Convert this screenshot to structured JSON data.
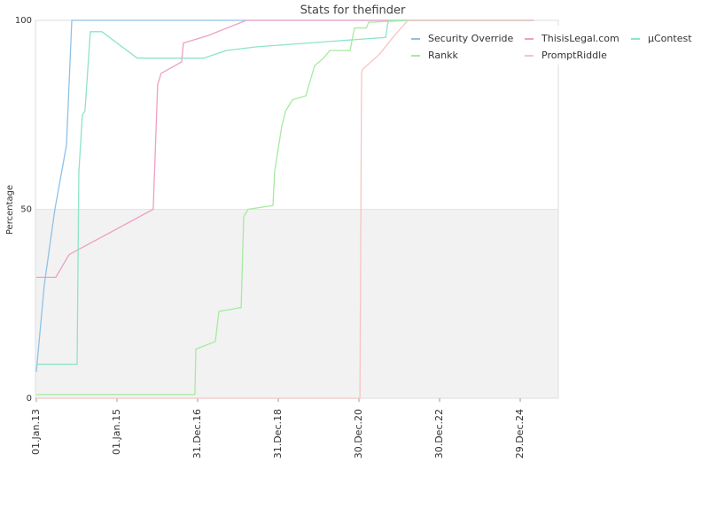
{
  "chart_data": {
    "type": "line",
    "title": "Stats for thefinder",
    "y_label": "Percentage",
    "xlim": [
      "2012-12-24",
      "2025-12-09"
    ],
    "xticks": [
      {
        "value": "2013-01-01",
        "label": "01.Jan.13"
      },
      {
        "value": "2015-01-01",
        "label": "01.Jan.15"
      },
      {
        "value": "2016-12-31",
        "label": "31.Dec.16"
      },
      {
        "value": "2018-12-31",
        "label": "31.Dec.18"
      },
      {
        "value": "2020-12-30",
        "label": "30.Dec.20"
      },
      {
        "value": "2022-12-30",
        "label": "30.Dec.22"
      },
      {
        "value": "2024-12-29",
        "label": "29.Dec.24"
      }
    ],
    "ylim": [
      0,
      100
    ],
    "yticks": [
      0,
      50,
      100
    ],
    "grid_bands": true,
    "legend": "top-right",
    "series": [
      {
        "name": "Security Override",
        "color": "#8fc1e8",
        "x": [
          "2013-01-01",
          "2013-03-14",
          "2013-06-18",
          "2013-10-01",
          "2013-11-18",
          "2025-04-30"
        ],
        "values": [
          7,
          30,
          50,
          67,
          100,
          100
        ]
      },
      {
        "name": "ThisisLegal.com",
        "color": "#ee9fc4",
        "x": [
          "2013-01-01",
          "2013-06-26",
          "2013-10-24",
          "2015-11-25",
          "2016-01-04",
          "2016-02-05",
          "2016-08-08",
          "2016-08-24",
          "2017-04-06",
          "2018-03-16",
          "2025-04-30"
        ],
        "values": [
          32,
          32,
          38,
          50,
          83,
          86,
          89,
          94,
          96,
          100,
          100
        ]
      },
      {
        "name": "µContest",
        "color": "#8ee3c8",
        "x": [
          "2013-01-01",
          "2014-01-05",
          "2014-01-21",
          "2014-02-22",
          "2014-03-17",
          "2014-05-05",
          "2014-08-18",
          "2015-07-03",
          "2017-02-24",
          "2017-09-13",
          "2018-06-20",
          "2021-08-29",
          "2021-09-22",
          "2025-04-30"
        ],
        "values": [
          9,
          9,
          60,
          75,
          76,
          97,
          97,
          90,
          90,
          92,
          93,
          95.5,
          100,
          100
        ]
      },
      {
        "name": "Rankk",
        "color": "#a6eaa0",
        "x": [
          "2013-01-01",
          "2016-12-06",
          "2016-12-15",
          "2017-06-09",
          "2017-07-12",
          "2018-01-29",
          "2018-02-21",
          "2018-04-01",
          "2018-11-13",
          "2018-11-28",
          "2019-02-01",
          "2019-03-07",
          "2019-05-09",
          "2019-09-06",
          "2019-11-25",
          "2020-02-14",
          "2020-04-09",
          "2020-10-11",
          "2020-11-06",
          "2020-11-21",
          "2021-03-06",
          "2021-03-29",
          "2022-04-26",
          "2025-04-30"
        ],
        "values": [
          1,
          1,
          13,
          15,
          23,
          24,
          48,
          50,
          51,
          60,
          72,
          76,
          79,
          80,
          88,
          90,
          92,
          92,
          96,
          98,
          98,
          99.5,
          100,
          100
        ]
      },
      {
        "name": "PromptRiddle",
        "color": "#f7c4c4",
        "x": [
          "2013-01-01",
          "2021-01-08",
          "2021-01-15",
          "2021-01-23",
          "2021-01-31",
          "2021-07-03",
          "2021-11-17",
          "2022-03-18",
          "2025-04-30"
        ],
        "values": [
          0,
          0,
          40,
          86,
          87,
          91,
          96,
          100,
          100
        ]
      }
    ]
  }
}
